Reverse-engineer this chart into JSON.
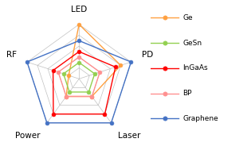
{
  "categories": [
    "LED",
    "PD",
    "Laser",
    "Power",
    "RF"
  ],
  "num_vars": 5,
  "series": [
    {
      "name": "Ge",
      "color": "#FFA040",
      "values": [
        5,
        4,
        2,
        2,
        1
      ]
    },
    {
      "name": "GeSn",
      "color": "#92D050",
      "values": [
        1.5,
        1.5,
        1.5,
        1.5,
        1.5
      ]
    },
    {
      "name": "InGaAs",
      "color": "#FF0000",
      "values": [
        2.5,
        3.5,
        4,
        4,
        2.5
      ]
    },
    {
      "name": "BP",
      "color": "#FF9090",
      "values": [
        2,
        2,
        2,
        2,
        2
      ]
    },
    {
      "name": "Graphene",
      "color": "#4472C4",
      "values": [
        3.5,
        5,
        5,
        5,
        5
      ]
    }
  ],
  "grid_levels": [
    1,
    2,
    3,
    4,
    5
  ],
  "grid_color": "#C0C0C0",
  "background_color": "#FFFFFF",
  "max_val": 5,
  "label_fontsize": 7.5,
  "legend_fontsize": 6.5
}
